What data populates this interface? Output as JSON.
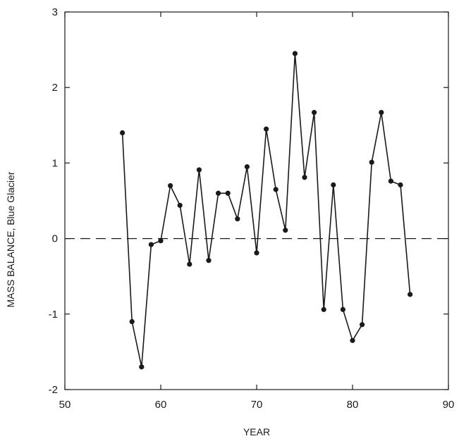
{
  "chart_data": {
    "type": "line",
    "title": "",
    "xlabel": "YEAR",
    "ylabel": "MASS BALANCE, Blue Glacier",
    "xlim": [
      50,
      90
    ],
    "ylim": [
      -2,
      3
    ],
    "xticks": [
      50,
      60,
      70,
      80,
      90
    ],
    "yticks": [
      -2,
      -1,
      0,
      1,
      2,
      3
    ],
    "x_tick_labels": [
      "50",
      "60",
      "70",
      "80",
      "90"
    ],
    "y_tick_labels": [
      "-2",
      "-1",
      "0",
      "1",
      "2",
      "3"
    ],
    "reference_line": {
      "y": 0,
      "style": "dashed"
    },
    "grid": false,
    "legend": "none",
    "colors": {
      "line": "#1a1a1a",
      "marker": "#1a1a1a",
      "axes": "#1a1a1a"
    },
    "series": [
      {
        "x": [
          56,
          57,
          58,
          59,
          60,
          61,
          62,
          63,
          64,
          65,
          66,
          67,
          68,
          69,
          70,
          71,
          72,
          73,
          74,
          75,
          76,
          77,
          78,
          79,
          80,
          81,
          82,
          83,
          84,
          85,
          86
        ],
        "y": [
          1.4,
          -1.1,
          -1.7,
          -0.08,
          -0.03,
          0.7,
          0.44,
          -0.34,
          0.91,
          -0.29,
          0.6,
          0.6,
          0.26,
          0.95,
          -0.19,
          1.45,
          0.65,
          0.11,
          2.45,
          0.81,
          1.67,
          -0.94,
          0.71,
          -0.94,
          -1.35,
          -1.14,
          1.01,
          1.67,
          0.76,
          0.71,
          -0.74
        ]
      }
    ]
  }
}
